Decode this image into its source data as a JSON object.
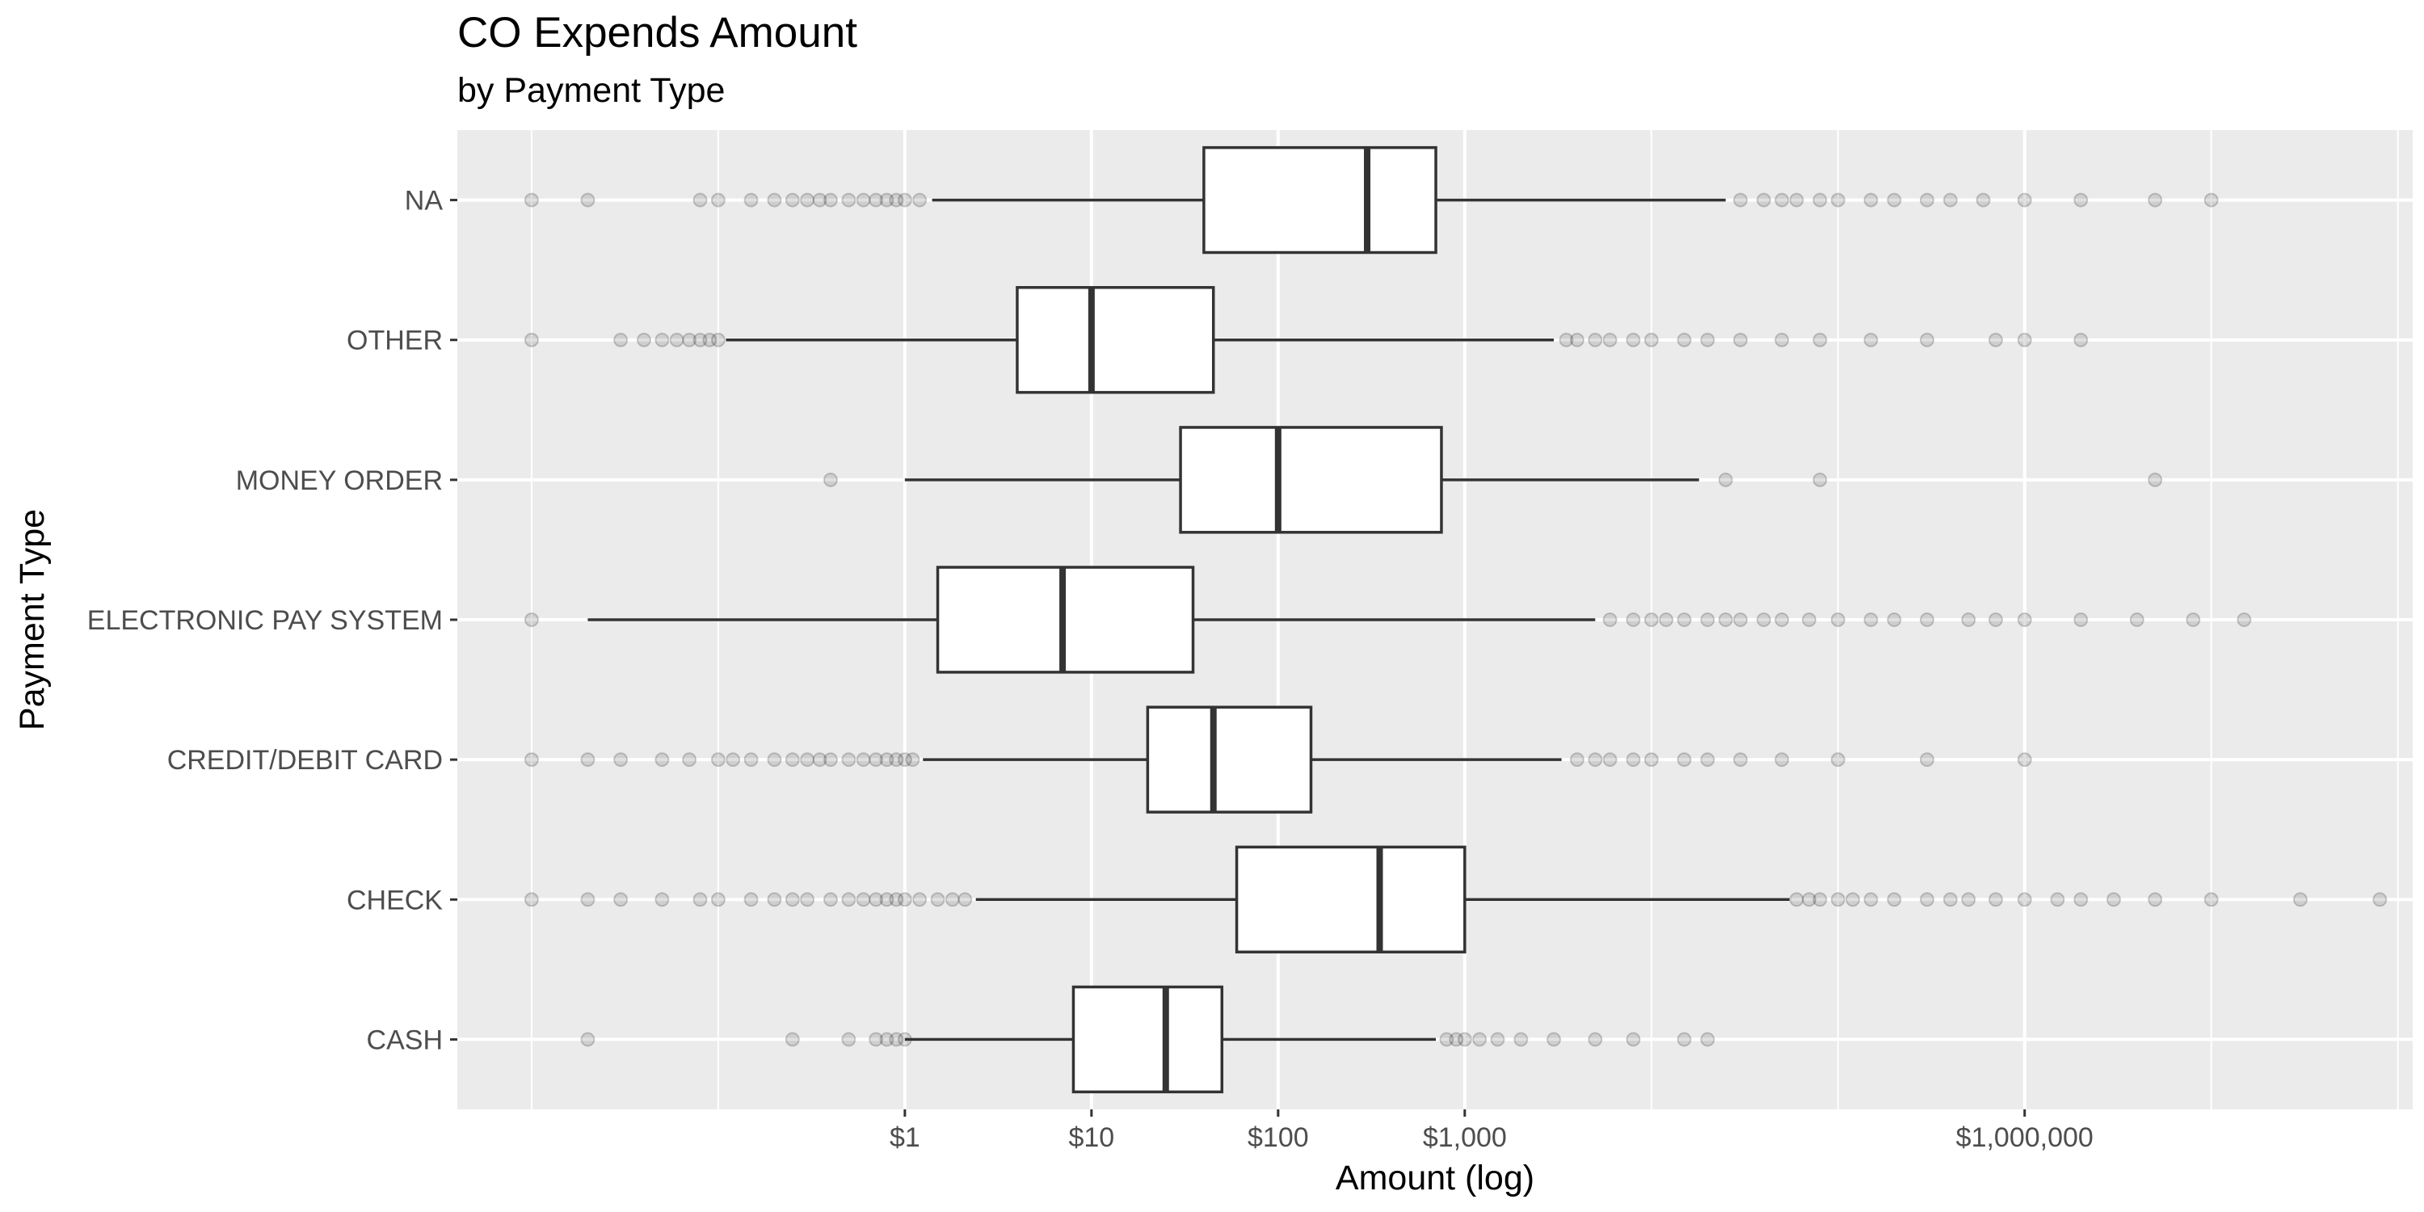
{
  "chart_data": {
    "type": "boxplot",
    "orientation": "horizontal",
    "title": "CO Expends Amount",
    "subtitle": "by Payment Type",
    "xlabel": "Amount (log)",
    "ylabel": "Payment Type",
    "x_scale": "log10",
    "xlim": [
      0.004,
      120000000
    ],
    "x_ticks": [
      {
        "value": 1,
        "label": "$1"
      },
      {
        "value": 10,
        "label": "$10"
      },
      {
        "value": 100,
        "label": "$100"
      },
      {
        "value": 1000,
        "label": "$1,000"
      },
      {
        "value": 1000000,
        "label": "$1,000,000"
      }
    ],
    "x_minor_grid": [
      0.01,
      0.1
    ],
    "x_extra_grid": [
      10000,
      100000,
      10000000,
      100000000
    ],
    "grid": true,
    "categories": [
      "NA",
      "OTHER",
      "MONEY ORDER",
      "ELECTRONIC PAY SYSTEM",
      "CREDIT/DEBIT CARD",
      "CHECK",
      "CASH"
    ],
    "boxes": [
      {
        "category": "NA",
        "whisker_low": 1.4,
        "q1": 40,
        "median": 300,
        "q3": 700,
        "whisker_high": 25000,
        "outliers": [
          0.01,
          0.02,
          0.08,
          0.1,
          0.15,
          0.2,
          0.25,
          0.3,
          0.35,
          0.4,
          0.5,
          0.6,
          0.7,
          0.8,
          0.9,
          1.0,
          1.2,
          30000,
          40000,
          50000,
          60000,
          80000,
          100000,
          150000,
          200000,
          300000,
          400000,
          600000,
          1000000,
          2000000,
          5000000,
          10000000
        ]
      },
      {
        "category": "OTHER",
        "whisker_low": 0.11,
        "q1": 4,
        "median": 10,
        "q3": 45,
        "whisker_high": 3000,
        "outliers": [
          0.01,
          0.03,
          0.04,
          0.05,
          0.06,
          0.07,
          0.08,
          0.09,
          0.1,
          3500,
          4000,
          5000,
          6000,
          8000,
          10000,
          15000,
          20000,
          30000,
          50000,
          80000,
          150000,
          300000,
          700000,
          1000000,
          2000000
        ]
      },
      {
        "category": "MONEY ORDER",
        "whisker_low": 1.0,
        "q1": 30,
        "median": 100,
        "q3": 750,
        "whisker_high": 18000,
        "outliers": [
          0.4,
          25000,
          80000,
          5000000
        ]
      },
      {
        "category": "ELECTRONIC PAY SYSTEM",
        "whisker_low": 0.02,
        "q1": 1.5,
        "median": 7,
        "q3": 35,
        "whisker_high": 5000,
        "outliers": [
          0.01,
          6000,
          8000,
          10000,
          12000,
          15000,
          20000,
          25000,
          30000,
          40000,
          50000,
          70000,
          100000,
          150000,
          200000,
          300000,
          500000,
          700000,
          1000000,
          2000000,
          4000000,
          8000000,
          15000000
        ]
      },
      {
        "category": "CREDIT/DEBIT CARD",
        "whisker_low": 1.25,
        "q1": 20,
        "median": 45,
        "q3": 150,
        "whisker_high": 3300,
        "outliers": [
          0.01,
          0.02,
          0.03,
          0.05,
          0.07,
          0.1,
          0.12,
          0.15,
          0.2,
          0.25,
          0.3,
          0.35,
          0.4,
          0.5,
          0.6,
          0.7,
          0.8,
          0.9,
          1.0,
          1.1,
          4000,
          5000,
          6000,
          8000,
          10000,
          15000,
          20000,
          30000,
          50000,
          100000,
          300000,
          1000000
        ]
      },
      {
        "category": "CHECK",
        "whisker_low": 2.4,
        "q1": 60,
        "median": 350,
        "q3": 1000,
        "whisker_high": 55000,
        "outliers": [
          0.01,
          0.02,
          0.03,
          0.05,
          0.08,
          0.1,
          0.15,
          0.2,
          0.25,
          0.3,
          0.4,
          0.5,
          0.6,
          0.7,
          0.8,
          0.9,
          1.0,
          1.2,
          1.5,
          1.8,
          2.1,
          60000,
          70000,
          80000,
          100000,
          120000,
          150000,
          200000,
          300000,
          400000,
          500000,
          700000,
          1000000,
          1500000,
          2000000,
          3000000,
          5000000,
          10000000,
          30000000,
          80000000
        ]
      },
      {
        "category": "CASH",
        "whisker_low": 1.0,
        "q1": 8,
        "median": 25,
        "q3": 50,
        "whisker_high": 700,
        "outliers": [
          0.02,
          0.25,
          0.5,
          0.7,
          0.8,
          0.9,
          1.0,
          800,
          900,
          1000,
          1200,
          1500,
          2000,
          3000,
          5000,
          8000,
          15000,
          20000
        ]
      }
    ]
  }
}
